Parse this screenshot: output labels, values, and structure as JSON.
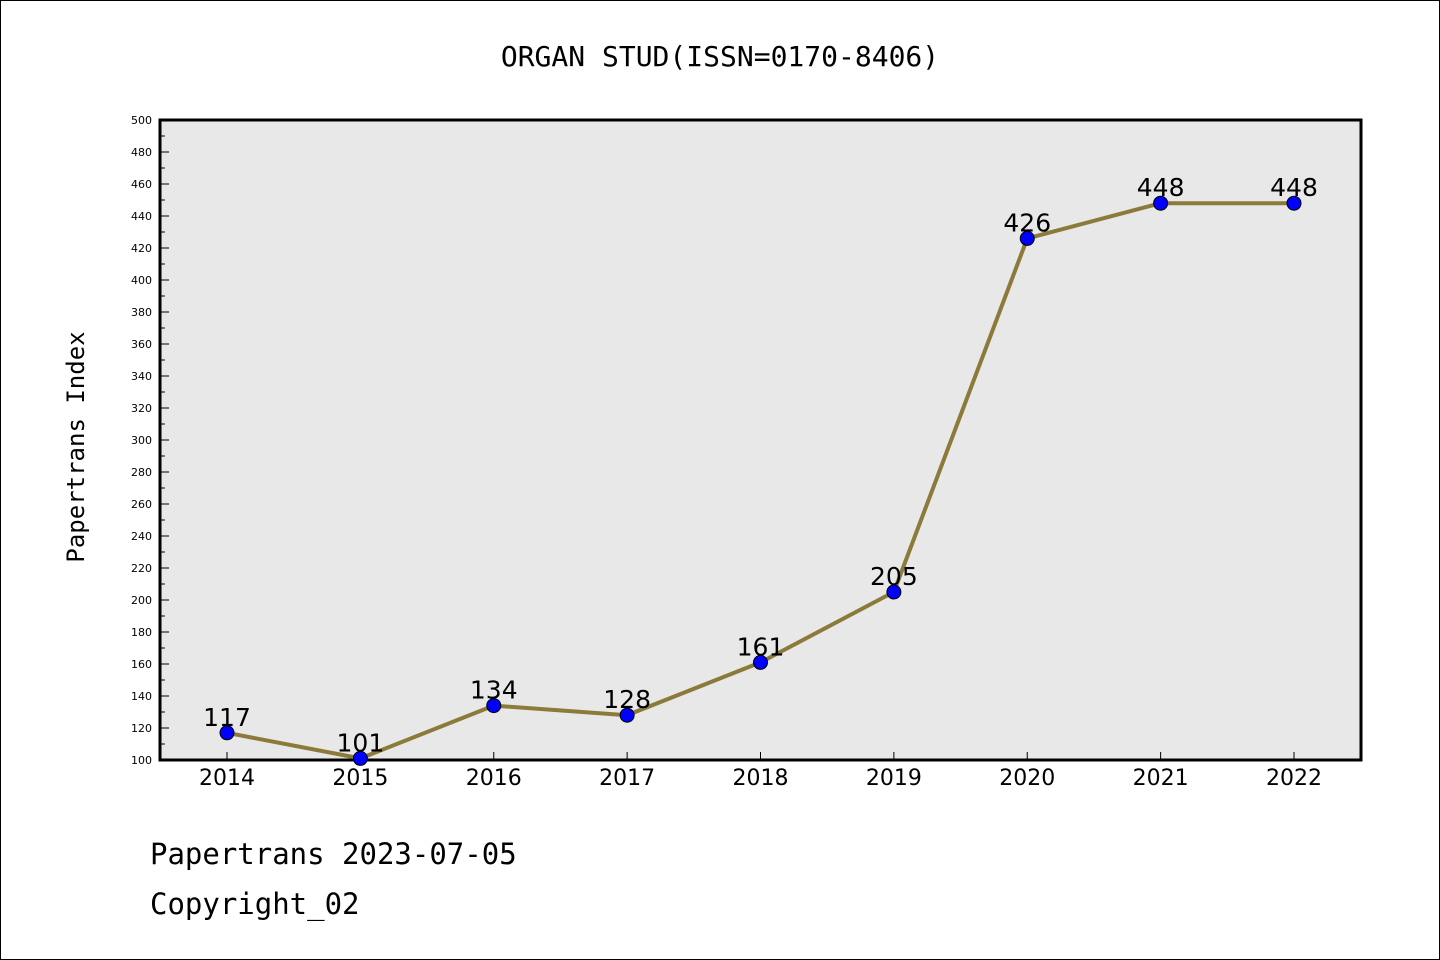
{
  "chart_data": {
    "type": "line",
    "title": "ORGAN STUD(ISSN=0170-8406)",
    "xlabel": "",
    "ylabel": "Papertrans Index",
    "x": [
      "2014",
      "2015",
      "2016",
      "2017",
      "2018",
      "2019",
      "2020",
      "2021",
      "2022"
    ],
    "series": [
      {
        "values": [
          117,
          101,
          134,
          128,
          161,
          205,
          426,
          448,
          448
        ]
      }
    ],
    "ylim": [
      100,
      500
    ],
    "yticks": [
      100,
      120,
      140,
      160,
      180,
      200,
      220,
      240,
      260,
      280,
      300,
      320,
      340,
      360,
      380,
      400,
      420,
      440,
      460,
      480,
      500
    ],
    "grid": false,
    "line_color": "#8b7a3a",
    "marker_color": "#0000ff",
    "plot_background": "#e8e8e8"
  },
  "footer": {
    "line1": "Papertrans 2023-07-05",
    "line2": "Copyright_02"
  }
}
